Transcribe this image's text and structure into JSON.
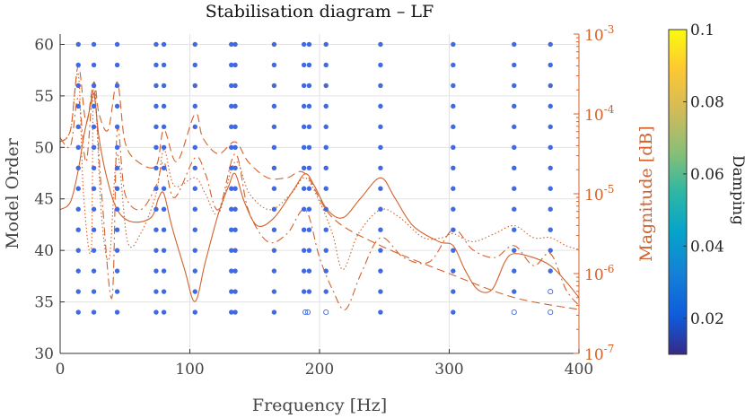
{
  "chart_data": {
    "type": "scatter",
    "title": "Stabilisation diagram – LF",
    "xlabel": "Frequency [Hz]",
    "ylabel": "Model Order",
    "y2label": "Magnitude [dB]",
    "colorbar_label": "Damping",
    "xlim": [
      0,
      400
    ],
    "ylim": [
      30,
      61
    ],
    "y2lim_log10": [
      -7,
      -3
    ],
    "x_ticks": [
      "0",
      "100",
      "200",
      "300",
      "400"
    ],
    "y_ticks": [
      "30",
      "35",
      "40",
      "45",
      "50",
      "55",
      "60"
    ],
    "y2_ticks": [
      {
        "base": "10",
        "exp": "-7",
        "log": -7
      },
      {
        "base": "10",
        "exp": "-6",
        "log": -6
      },
      {
        "base": "10",
        "exp": "-5",
        "log": -5
      },
      {
        "base": "10",
        "exp": "-4",
        "log": -4
      },
      {
        "base": "10",
        "exp": "-3",
        "log": -3
      }
    ],
    "colorbar_ticks": [
      "0.1",
      "0.08",
      "0.06",
      "0.04",
      "0.02"
    ],
    "colorbar_range": [
      0.01,
      0.1
    ],
    "grid": true,
    "colors": {
      "stable_pole": "#4169e1",
      "magnitude": "#d2622c",
      "axis_right": "#d2622c",
      "grid": "#e3e3e3"
    },
    "pole_frequencies": [
      14,
      26,
      44,
      74,
      80,
      104,
      132,
      135,
      165,
      188,
      192,
      205,
      247,
      303,
      350,
      378
    ],
    "model_orders": [
      34,
      36,
      38,
      40,
      42,
      44,
      46,
      48,
      50,
      52,
      54,
      56,
      58,
      60
    ],
    "unstable_poles": [
      {
        "f": 189,
        "order": 34
      },
      {
        "f": 191,
        "order": 34
      },
      {
        "f": 205,
        "order": 34
      },
      {
        "f": 350,
        "order": 34
      },
      {
        "f": 378,
        "order": 34
      },
      {
        "f": 378,
        "order": 36
      }
    ],
    "magnitude_series": [
      {
        "style": "solid",
        "points": [
          [
            0,
            -5.2
          ],
          [
            8,
            -5.1
          ],
          [
            14,
            -4.7
          ],
          [
            18,
            -4.3
          ],
          [
            22,
            -4.0
          ],
          [
            26,
            -3.75
          ],
          [
            30,
            -4.3
          ],
          [
            36,
            -4.8
          ],
          [
            44,
            -5.2
          ],
          [
            55,
            -5.35
          ],
          [
            70,
            -5.3
          ],
          [
            76,
            -5.05
          ],
          [
            80,
            -5.0
          ],
          [
            86,
            -5.4
          ],
          [
            96,
            -5.95
          ],
          [
            104,
            -6.35
          ],
          [
            112,
            -5.85
          ],
          [
            122,
            -5.25
          ],
          [
            130,
            -4.9
          ],
          [
            135,
            -4.75
          ],
          [
            142,
            -5.1
          ],
          [
            152,
            -5.4
          ],
          [
            165,
            -5.3
          ],
          [
            180,
            -4.95
          ],
          [
            189,
            -4.75
          ],
          [
            196,
            -4.9
          ],
          [
            206,
            -5.2
          ],
          [
            218,
            -5.3
          ],
          [
            232,
            -5.05
          ],
          [
            247,
            -4.8
          ],
          [
            258,
            -5.05
          ],
          [
            272,
            -5.4
          ],
          [
            292,
            -5.6
          ],
          [
            303,
            -5.65
          ],
          [
            312,
            -5.95
          ],
          [
            322,
            -6.2
          ],
          [
            333,
            -6.2
          ],
          [
            343,
            -5.85
          ],
          [
            350,
            -5.75
          ],
          [
            365,
            -5.8
          ],
          [
            378,
            -5.9
          ],
          [
            390,
            -6.1
          ],
          [
            400,
            -6.3
          ]
        ]
      },
      {
        "style": "dashed",
        "points": [
          [
            0,
            -4.35
          ],
          [
            8,
            -4.2
          ],
          [
            14,
            -3.4
          ],
          [
            20,
            -4.1
          ],
          [
            26,
            -3.6
          ],
          [
            30,
            -4.0
          ],
          [
            37,
            -4.2
          ],
          [
            44,
            -3.6
          ],
          [
            50,
            -4.35
          ],
          [
            60,
            -4.6
          ],
          [
            74,
            -4.65
          ],
          [
            80,
            -4.2
          ],
          [
            90,
            -4.6
          ],
          [
            104,
            -4.0
          ],
          [
            110,
            -4.3
          ],
          [
            122,
            -4.5
          ],
          [
            135,
            -4.35
          ],
          [
            145,
            -4.6
          ],
          [
            160,
            -4.8
          ],
          [
            175,
            -4.8
          ],
          [
            189,
            -4.75
          ],
          [
            210,
            -5.3
          ],
          [
            247,
            -5.65
          ],
          [
            300,
            -6.0
          ],
          [
            350,
            -6.3
          ],
          [
            400,
            -6.45
          ]
        ]
      },
      {
        "style": "dashdot",
        "points": [
          [
            0,
            -4.3
          ],
          [
            8,
            -4.4
          ],
          [
            14,
            -3.8
          ],
          [
            20,
            -4.6
          ],
          [
            26,
            -3.7
          ],
          [
            32,
            -5.0
          ],
          [
            40,
            -6.3
          ],
          [
            44,
            -4.2
          ],
          [
            50,
            -5.0
          ],
          [
            62,
            -5.2
          ],
          [
            74,
            -4.9
          ],
          [
            80,
            -4.6
          ],
          [
            88,
            -5.05
          ],
          [
            104,
            -4.55
          ],
          [
            112,
            -4.75
          ],
          [
            122,
            -5.2
          ],
          [
            135,
            -4.5
          ],
          [
            145,
            -5.2
          ],
          [
            160,
            -5.6
          ],
          [
            175,
            -5.5
          ],
          [
            189,
            -5.2
          ],
          [
            200,
            -5.8
          ],
          [
            210,
            -6.2
          ],
          [
            220,
            -6.45
          ],
          [
            232,
            -6.0
          ],
          [
            247,
            -5.55
          ],
          [
            265,
            -5.8
          ],
          [
            285,
            -5.85
          ],
          [
            303,
            -5.45
          ],
          [
            318,
            -5.7
          ],
          [
            335,
            -5.8
          ],
          [
            350,
            -5.65
          ],
          [
            365,
            -5.9
          ],
          [
            378,
            -5.75
          ],
          [
            390,
            -6.2
          ],
          [
            400,
            -6.4
          ]
        ]
      },
      {
        "style": "dotted",
        "points": [
          [
            0,
            -4.35
          ],
          [
            8,
            -4.2
          ],
          [
            14,
            -3.5
          ],
          [
            18,
            -5.0
          ],
          [
            24,
            -5.7
          ],
          [
            26,
            -3.6
          ],
          [
            32,
            -5.3
          ],
          [
            38,
            -5.8
          ],
          [
            44,
            -4.5
          ],
          [
            52,
            -5.6
          ],
          [
            62,
            -5.5
          ],
          [
            74,
            -5.0
          ],
          [
            80,
            -4.45
          ],
          [
            88,
            -4.9
          ],
          [
            104,
            -4.8
          ],
          [
            112,
            -5.0
          ],
          [
            122,
            -5.25
          ],
          [
            135,
            -4.6
          ],
          [
            146,
            -5.0
          ],
          [
            162,
            -5.2
          ],
          [
            178,
            -5.0
          ],
          [
            189,
            -4.8
          ],
          [
            200,
            -5.1
          ],
          [
            210,
            -5.5
          ],
          [
            218,
            -5.95
          ],
          [
            230,
            -5.5
          ],
          [
            247,
            -5.2
          ],
          [
            262,
            -5.3
          ],
          [
            280,
            -5.55
          ],
          [
            295,
            -5.55
          ],
          [
            303,
            -5.5
          ],
          [
            318,
            -5.6
          ],
          [
            335,
            -5.5
          ],
          [
            350,
            -5.4
          ],
          [
            365,
            -5.55
          ],
          [
            378,
            -5.55
          ],
          [
            390,
            -5.65
          ],
          [
            400,
            -5.7
          ]
        ]
      }
    ]
  }
}
